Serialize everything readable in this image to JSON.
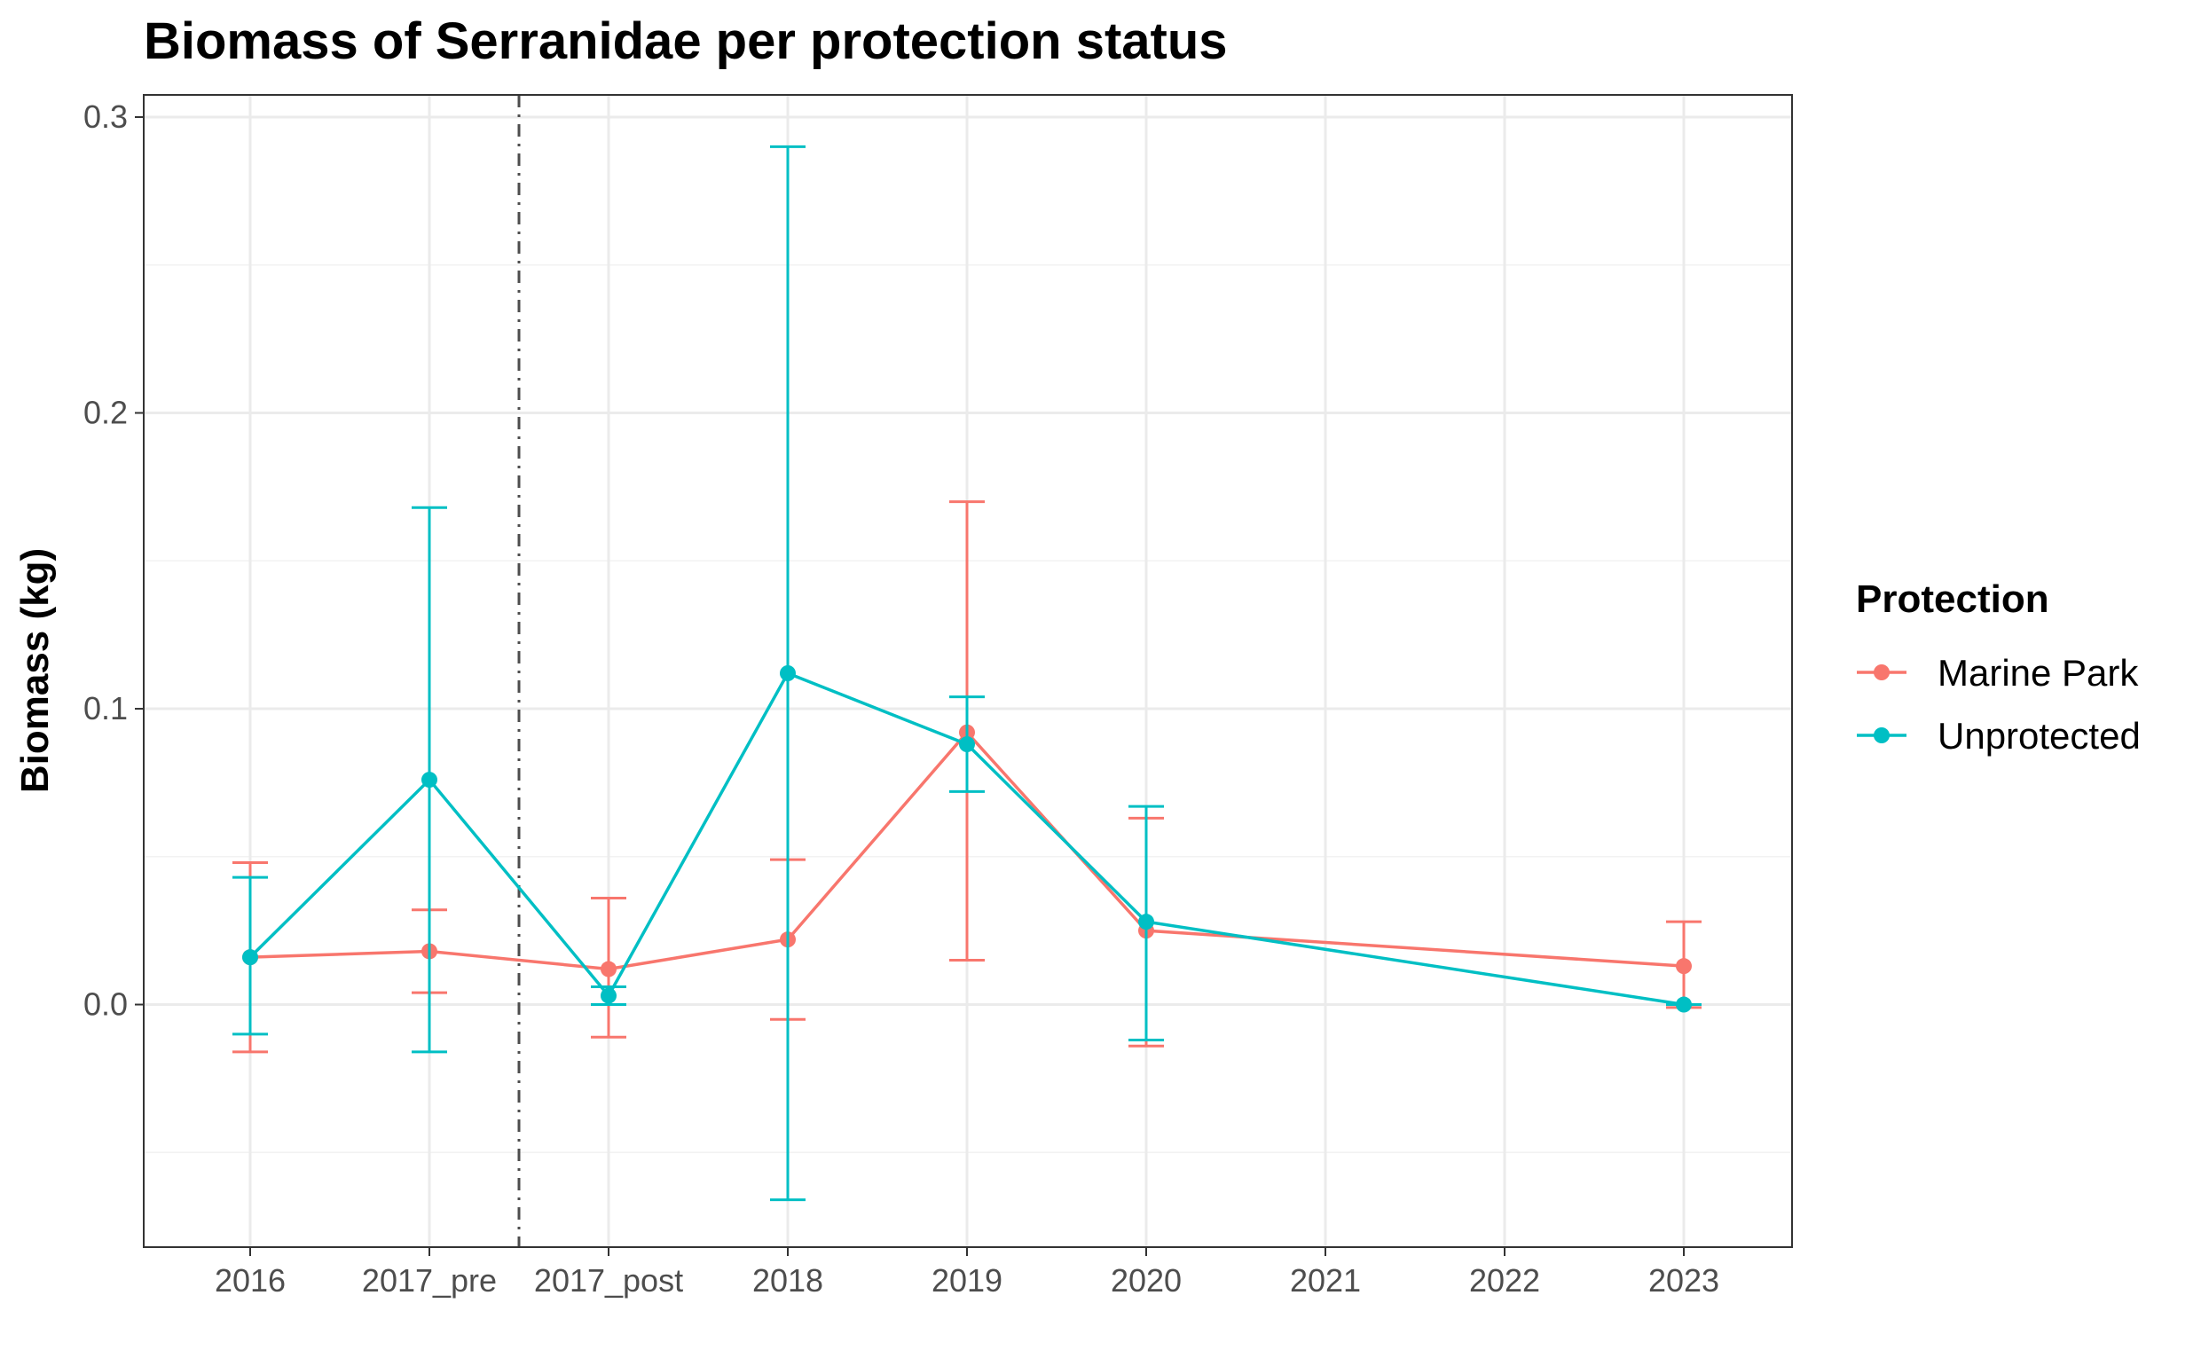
{
  "chart_data": {
    "type": "line",
    "title": "Biomass of Serranidae per protection status",
    "xlabel": "",
    "ylabel": "Biomass (kg)",
    "categories": [
      "2016",
      "2017_pre",
      "2017_post",
      "2018",
      "2019",
      "2020",
      "2021",
      "2022",
      "2023"
    ],
    "ylim": [
      -0.082,
      0.3075
    ],
    "yticks": [
      0.0,
      0.1,
      0.2,
      0.3
    ],
    "ytick_labels": [
      "0.0",
      "0.1",
      "0.2",
      "0.3"
    ],
    "grid": true,
    "reference_line": {
      "type": "vertical",
      "style": "dash-dot",
      "between": [
        "2017_pre",
        "2017_post"
      ]
    },
    "legend": {
      "title": "Protection",
      "placement": "right"
    },
    "series": [
      {
        "name": "Marine Park",
        "color": "#F8766D",
        "points": [
          {
            "x": "2016",
            "y": 0.016,
            "lower": -0.016,
            "upper": 0.048
          },
          {
            "x": "2017_pre",
            "y": 0.018,
            "lower": 0.004,
            "upper": 0.032
          },
          {
            "x": "2017_post",
            "y": 0.012,
            "lower": -0.011,
            "upper": 0.036
          },
          {
            "x": "2018",
            "y": 0.022,
            "lower": -0.005,
            "upper": 0.049
          },
          {
            "x": "2019",
            "y": 0.092,
            "lower": 0.015,
            "upper": 0.17
          },
          {
            "x": "2020",
            "y": 0.025,
            "lower": -0.014,
            "upper": 0.063
          },
          {
            "x": "2023",
            "y": 0.013,
            "lower": -0.001,
            "upper": 0.028
          }
        ]
      },
      {
        "name": "Unprotected",
        "color": "#00BFC4",
        "points": [
          {
            "x": "2016",
            "y": 0.016,
            "lower": -0.01,
            "upper": 0.043
          },
          {
            "x": "2017_pre",
            "y": 0.076,
            "lower": -0.016,
            "upper": 0.168
          },
          {
            "x": "2017_post",
            "y": 0.003,
            "lower": 0.0,
            "upper": 0.006
          },
          {
            "x": "2018",
            "y": 0.112,
            "lower": -0.066,
            "upper": 0.29
          },
          {
            "x": "2019",
            "y": 0.088,
            "lower": 0.072,
            "upper": 0.104
          },
          {
            "x": "2020",
            "y": 0.028,
            "lower": -0.012,
            "upper": 0.067
          },
          {
            "x": "2023",
            "y": 0.0,
            "lower": 0.0,
            "upper": 0.0
          }
        ]
      }
    ]
  }
}
